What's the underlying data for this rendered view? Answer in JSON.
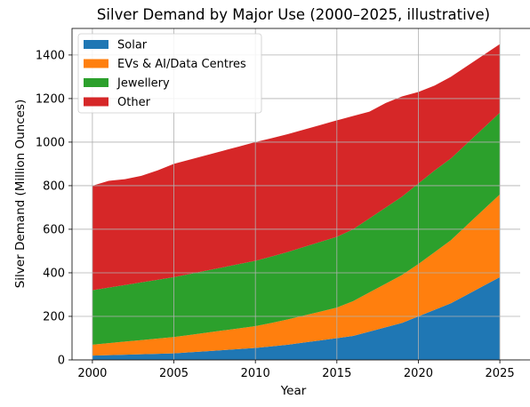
{
  "chart_data": {
    "type": "area",
    "stacked": true,
    "title": "Silver Demand by Major Use (2000–2025, illustrative)",
    "xlabel": "Year",
    "ylabel": "Silver Demand (Million Ounces)",
    "xlim": [
      1998.75,
      2026.25
    ],
    "ylim": [
      0,
      1522
    ],
    "xticks": [
      2000,
      2005,
      2010,
      2015,
      2020,
      2025
    ],
    "yticks": [
      0,
      200,
      400,
      600,
      800,
      1000,
      1200,
      1400
    ],
    "grid": true,
    "legend_position": "top-left",
    "x": [
      2000,
      2001,
      2002,
      2003,
      2004,
      2005,
      2006,
      2007,
      2008,
      2009,
      2010,
      2011,
      2012,
      2013,
      2014,
      2015,
      2016,
      2017,
      2018,
      2019,
      2020,
      2021,
      2022,
      2023,
      2024,
      2025
    ],
    "series": [
      {
        "name": "Solar",
        "color": "#1f77b4",
        "values": [
          20,
          22,
          24,
          26,
          28,
          30,
          35,
          40,
          45,
          50,
          55,
          62,
          70,
          80,
          90,
          100,
          110,
          130,
          150,
          170,
          200,
          230,
          260,
          300,
          340,
          380
        ]
      },
      {
        "name": "EVs & AI/Data Centres",
        "color": "#ff7f0e",
        "values": [
          50,
          55,
          60,
          65,
          70,
          75,
          80,
          85,
          90,
          95,
          100,
          108,
          116,
          124,
          132,
          140,
          160,
          180,
          200,
          220,
          240,
          265,
          290,
          320,
          350,
          380
        ]
      },
      {
        "name": "Jewellery",
        "color": "#2ca02c",
        "values": [
          250,
          255,
          260,
          265,
          270,
          275,
          280,
          285,
          290,
          295,
          300,
          305,
          310,
          315,
          320,
          325,
          330,
          340,
          350,
          360,
          370,
          375,
          375,
          375,
          375,
          375
        ]
      },
      {
        "name": "Other",
        "color": "#d62728",
        "values": [
          480,
          490,
          486,
          489,
          502,
          520,
          525,
          530,
          535,
          540,
          545,
          543,
          541,
          539,
          537,
          535,
          520,
          490,
          480,
          460,
          420,
          390,
          375,
          355,
          335,
          315
        ]
      }
    ]
  }
}
